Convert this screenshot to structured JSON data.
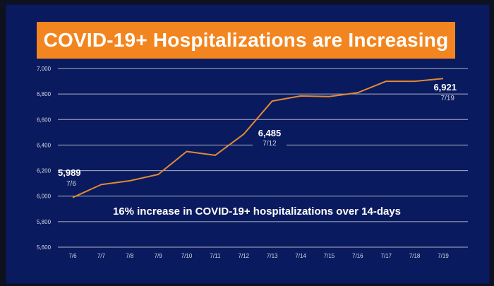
{
  "title": "COVID-19+ Hospitalizations are Increasing",
  "colors": {
    "background": "#0a1a5e",
    "banner": "#f2851f",
    "line": "#e08a33",
    "gridline": "#c9ccd8",
    "text": "#ffffff"
  },
  "chart_data": {
    "type": "line",
    "title": "COVID-19+ Hospitalizations are Increasing",
    "xlabel": "",
    "ylabel": "",
    "categories": [
      "7/6",
      "7/7",
      "7/8",
      "7/9",
      "7/10",
      "7/11",
      "7/12",
      "7/13",
      "7/14",
      "7/15",
      "7/16",
      "7/17",
      "7/18",
      "7/19"
    ],
    "series": [
      {
        "values": [
          5989,
          6090,
          6120,
          6170,
          6350,
          6320,
          6485,
          6745,
          6785,
          6780,
          6810,
          6900,
          6900,
          6921
        ]
      }
    ],
    "ylim": [
      5600,
      7000
    ],
    "yticks": [
      "5,600",
      "5,800",
      "6,000",
      "6,200",
      "6,400",
      "6,600",
      "6,800",
      "7,000"
    ],
    "grid": true,
    "legend": "none",
    "data_labels": [
      {
        "index": 0,
        "value": "5,989",
        "date": "7/6"
      },
      {
        "index": 6,
        "value": "6,485",
        "date": "7/12"
      },
      {
        "index": 13,
        "value": "6,921",
        "date": "7/19"
      }
    ],
    "annotation": "16% increase in COVID-19+ hospitalizations over 14-days"
  }
}
